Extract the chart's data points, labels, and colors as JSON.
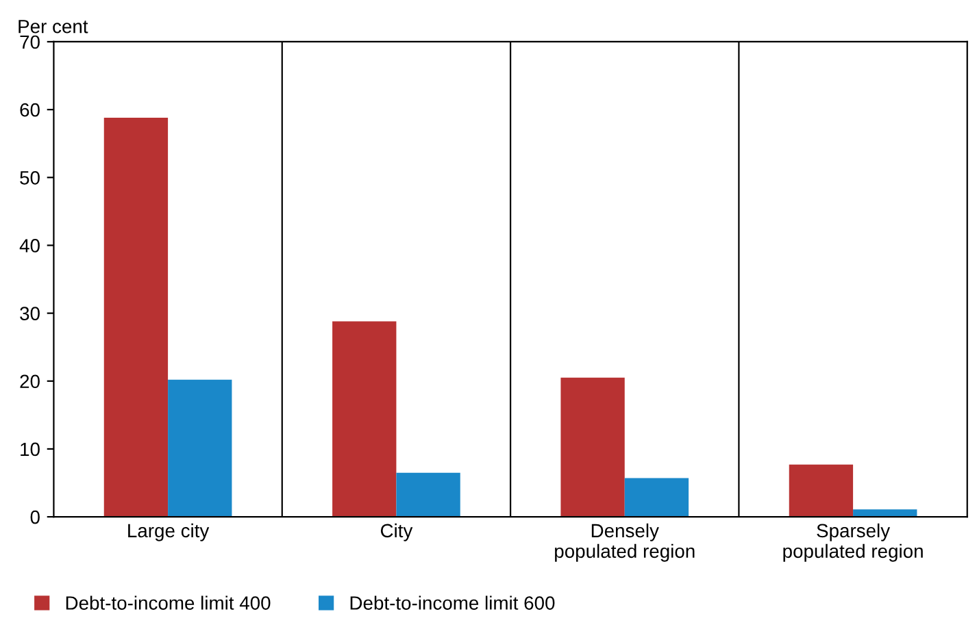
{
  "chart_data": {
    "type": "bar",
    "ylabel": "Per cent",
    "categories": [
      "Large city",
      "City",
      "Densely\npopulated region",
      "Sparsely\npopulated region"
    ],
    "series": [
      {
        "name": "Debt-to-income limit 400",
        "color": "#b83232",
        "values": [
          58.8,
          28.8,
          20.5,
          7.7
        ]
      },
      {
        "name": "Debt-to-income limit 600",
        "color": "#1a88c9",
        "values": [
          20.2,
          6.5,
          5.7,
          1.1
        ]
      }
    ],
    "ylim": [
      0,
      70
    ],
    "yticks": [
      0,
      10,
      20,
      30,
      40,
      50,
      60,
      70
    ],
    "grid": "x",
    "legend": "bottom"
  }
}
